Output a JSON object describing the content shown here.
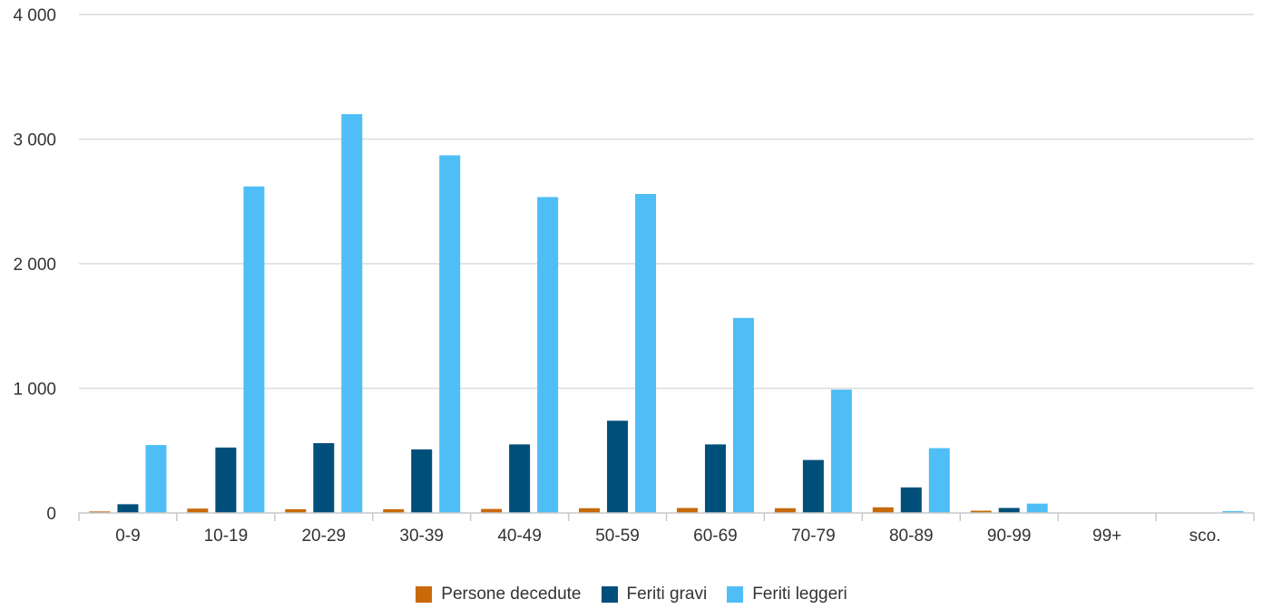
{
  "chart_data": {
    "type": "bar",
    "categories": [
      "0-9",
      "10-19",
      "20-29",
      "30-39",
      "40-49",
      "50-59",
      "60-69",
      "70-79",
      "80-89",
      "90-99",
      "99+",
      "sco."
    ],
    "series": [
      {
        "name": "Persone decedute",
        "color": "#c8690a",
        "values": [
          12,
          35,
          30,
          30,
          32,
          38,
          40,
          38,
          45,
          18,
          1,
          1
        ]
      },
      {
        "name": "Feriti gravi",
        "color": "#004f7a",
        "values": [
          70,
          525,
          560,
          510,
          550,
          740,
          550,
          425,
          205,
          40,
          2,
          2
        ]
      },
      {
        "name": "Feriti leggeri",
        "color": "#4fbef7",
        "values": [
          545,
          2620,
          3200,
          2870,
          2535,
          2560,
          1565,
          990,
          520,
          75,
          2,
          15
        ]
      }
    ],
    "yticks": [
      0,
      1000,
      2000,
      3000,
      4000
    ],
    "ytick_labels": [
      "0",
      "1 000",
      "2 000",
      "3 000",
      "4 000"
    ],
    "ylim": [
      0,
      4000
    ],
    "grid": true,
    "legend_position": "bottom"
  }
}
